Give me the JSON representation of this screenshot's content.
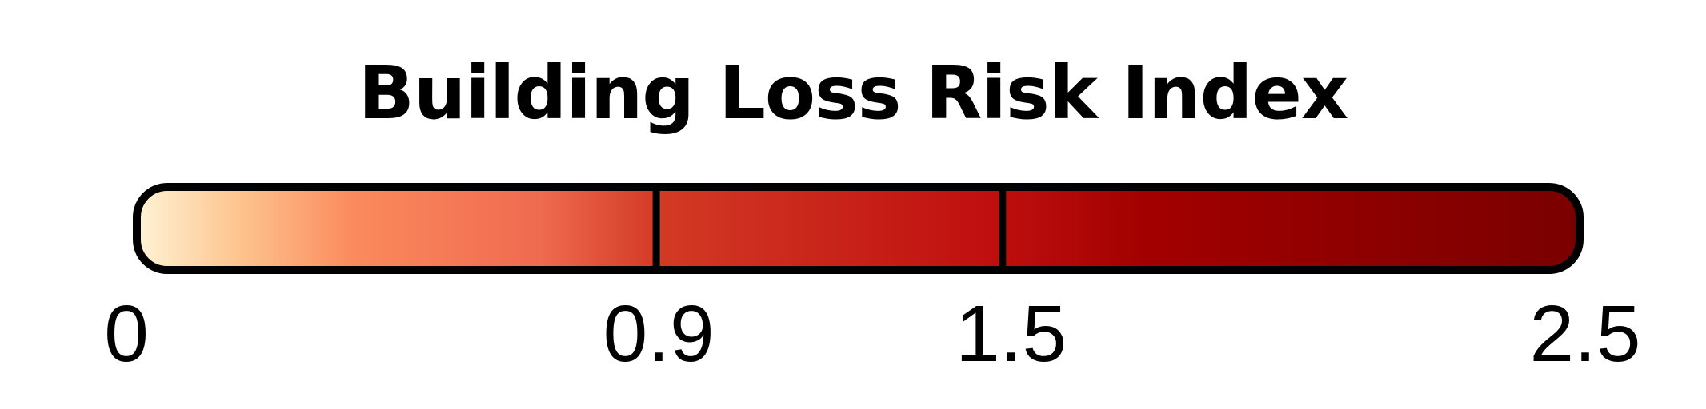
{
  "legend": {
    "title": "Building Loss Risk Index",
    "range": [
      0,
      2.5
    ],
    "gradient_colors": [
      "#fff3d6",
      "#fdc58f",
      "#fb8a5d",
      "#ef6a50",
      "#d33a25",
      "#be0e0e",
      "#a20000",
      "#7a0000"
    ],
    "gradient_stops": [
      0,
      0.07,
      0.15,
      0.28,
      0.36,
      0.6,
      0.7,
      1.0
    ],
    "border_color": "#000000",
    "breaks": [
      0.9,
      1.5
    ],
    "tick_labels": [
      {
        "value": 0,
        "label": "0"
      },
      {
        "value": 0.9,
        "label": "0.9"
      },
      {
        "value": 1.5,
        "label": "1.5"
      },
      {
        "value": 2.5,
        "label": "2.5"
      }
    ]
  }
}
